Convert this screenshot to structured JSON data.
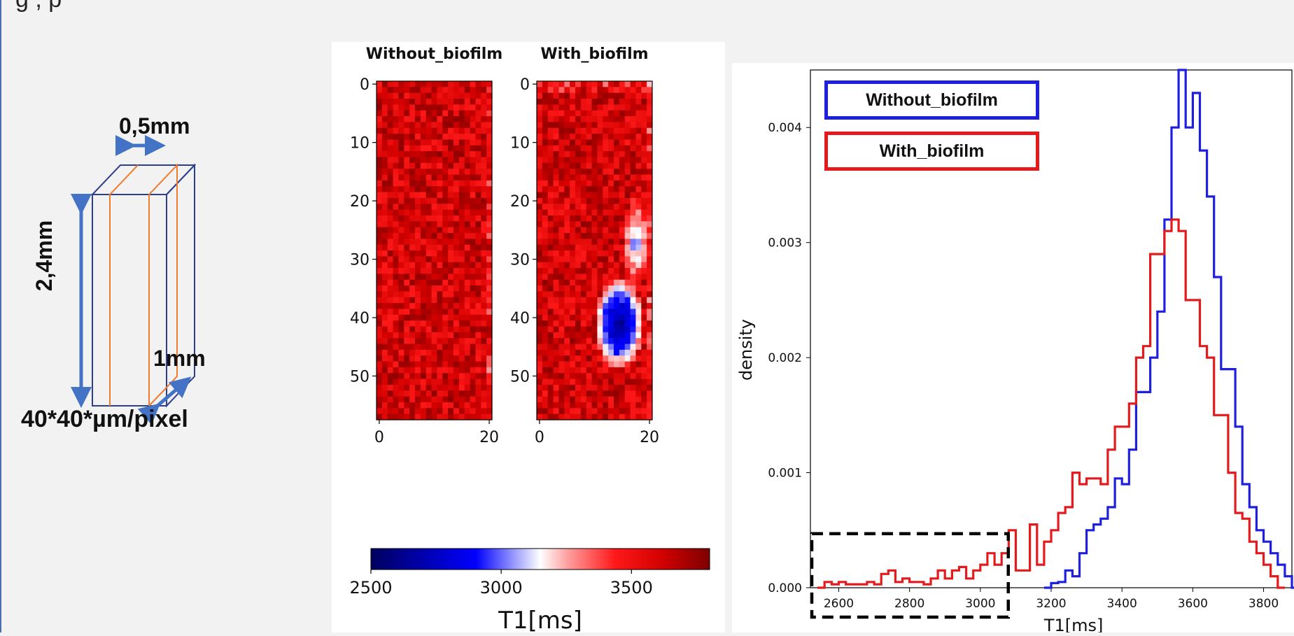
{
  "top_text": "g , p",
  "diagram": {
    "width_label": "0,5mm",
    "height_label": "2,4mm",
    "depth_label": "1mm",
    "resolution_label": "40*40*µm/pixel",
    "colors": {
      "outline": "#2f3f8f",
      "inner": "#ed7d31",
      "arrow": "#4472c4"
    }
  },
  "heatmaps": {
    "panels": [
      {
        "title": "Without_biofilm",
        "biofilm": false
      },
      {
        "title": "With_biofilm",
        "biofilm": true
      }
    ],
    "rows": 58,
    "cols": 21,
    "y_ticks": [
      "0",
      "10",
      "20",
      "30",
      "40",
      "50"
    ],
    "x_ticks": [
      "0",
      "20"
    ],
    "colorbar": {
      "label": "T1[ms]",
      "ticks": [
        "2500",
        "3000",
        "3500"
      ],
      "range": [
        2500,
        3800
      ],
      "center": 3050
    }
  },
  "chart_data": {
    "type": "histogram",
    "xlabel": "T1[ms]",
    "ylabel": "density",
    "xlim": [
      2520,
      3880
    ],
    "ylim": [
      0,
      0.0045
    ],
    "x_ticks": [
      "2600",
      "2800",
      "3000",
      "3200",
      "3400",
      "3600",
      "3800"
    ],
    "y_ticks": [
      "0.000",
      "0.001",
      "0.002",
      "0.003",
      "0.004"
    ],
    "legend": [
      "Without_biofilm",
      "With_biofilm"
    ],
    "highlight_box": {
      "x_range": [
        2520,
        3075
      ],
      "style": "dashed",
      "color": "#000000"
    },
    "series": [
      {
        "name": "Without_biofilm",
        "color": "#1f1fe0",
        "bins": [
          [
            3180,
            0
          ],
          [
            3200,
            4e-05
          ],
          [
            3220,
            5e-05
          ],
          [
            3240,
            0.00015
          ],
          [
            3260,
            0.0001
          ],
          [
            3280,
            0.0003
          ],
          [
            3300,
            0.0005
          ],
          [
            3320,
            0.00055
          ],
          [
            3340,
            0.0006
          ],
          [
            3360,
            0.0007
          ],
          [
            3380,
            0.00095
          ],
          [
            3400,
            0.0009
          ],
          [
            3420,
            0.0012
          ],
          [
            3440,
            0.0017
          ],
          [
            3460,
            0.0017
          ],
          [
            3480,
            0.002
          ],
          [
            3500,
            0.0024
          ],
          [
            3520,
            0.0032
          ],
          [
            3540,
            0.004
          ],
          [
            3560,
            0.0045
          ],
          [
            3580,
            0.004
          ],
          [
            3600,
            0.0043
          ],
          [
            3620,
            0.0038
          ],
          [
            3640,
            0.0034
          ],
          [
            3660,
            0.0027
          ],
          [
            3680,
            0.0019
          ],
          [
            3700,
            0.0019
          ],
          [
            3720,
            0.0014
          ],
          [
            3740,
            0.0009
          ],
          [
            3760,
            0.0007
          ],
          [
            3780,
            0.0005
          ],
          [
            3800,
            0.0004
          ],
          [
            3820,
            0.0003
          ],
          [
            3840,
            0.0002
          ],
          [
            3860,
            0.0001
          ],
          [
            3880,
            0
          ]
        ]
      },
      {
        "name": "With_biofilm",
        "color": "#e41a1c",
        "bins": [
          [
            2540,
            0
          ],
          [
            2560,
            5e-05
          ],
          [
            2580,
            3e-05
          ],
          [
            2600,
            5e-05
          ],
          [
            2620,
            3e-05
          ],
          [
            2640,
            3e-05
          ],
          [
            2660,
            3e-05
          ],
          [
            2680,
            5e-05
          ],
          [
            2700,
            3e-05
          ],
          [
            2720,
            0.00012
          ],
          [
            2740,
            0.00015
          ],
          [
            2760,
            5e-05
          ],
          [
            2780,
            8e-05
          ],
          [
            2800,
            5e-05
          ],
          [
            2820,
            5e-05
          ],
          [
            2840,
            3e-05
          ],
          [
            2860,
            8e-05
          ],
          [
            2880,
            0.00015
          ],
          [
            2900,
            8e-05
          ],
          [
            2920,
            0.00015
          ],
          [
            2940,
            0.00018
          ],
          [
            2960,
            8e-05
          ],
          [
            2980,
            0.00015
          ],
          [
            3000,
            0.0002
          ],
          [
            3020,
            0.0003
          ],
          [
            3040,
            0.0002
          ],
          [
            3060,
            0.0003
          ],
          [
            3080,
            0.0005
          ],
          [
            3100,
            0.00015
          ],
          [
            3120,
            0.00015
          ],
          [
            3140,
            0.00055
          ],
          [
            3160,
            0.0002
          ],
          [
            3180,
            0.0004
          ],
          [
            3200,
            0.0005
          ],
          [
            3220,
            0.00065
          ],
          [
            3240,
            0.0007
          ],
          [
            3260,
            0.001
          ],
          [
            3280,
            0.0009
          ],
          [
            3300,
            0.00095
          ],
          [
            3320,
            0.00095
          ],
          [
            3340,
            0.0009
          ],
          [
            3360,
            0.0012
          ],
          [
            3380,
            0.0014
          ],
          [
            3400,
            0.0014
          ],
          [
            3420,
            0.0016
          ],
          [
            3440,
            0.002
          ],
          [
            3460,
            0.0021
          ],
          [
            3480,
            0.0029
          ],
          [
            3500,
            0.0029
          ],
          [
            3520,
            0.0031
          ],
          [
            3540,
            0.0032
          ],
          [
            3560,
            0.0031
          ],
          [
            3580,
            0.0025
          ],
          [
            3600,
            0.0025
          ],
          [
            3620,
            0.0021
          ],
          [
            3640,
            0.002
          ],
          [
            3660,
            0.0015
          ],
          [
            3680,
            0.0015
          ],
          [
            3700,
            0.001
          ],
          [
            3720,
            0.00065
          ],
          [
            3740,
            0.0006
          ],
          [
            3760,
            0.0004
          ],
          [
            3780,
            0.0003
          ],
          [
            3800,
            0.0002
          ],
          [
            3820,
            0.0001
          ],
          [
            3840,
            0
          ]
        ]
      }
    ]
  }
}
